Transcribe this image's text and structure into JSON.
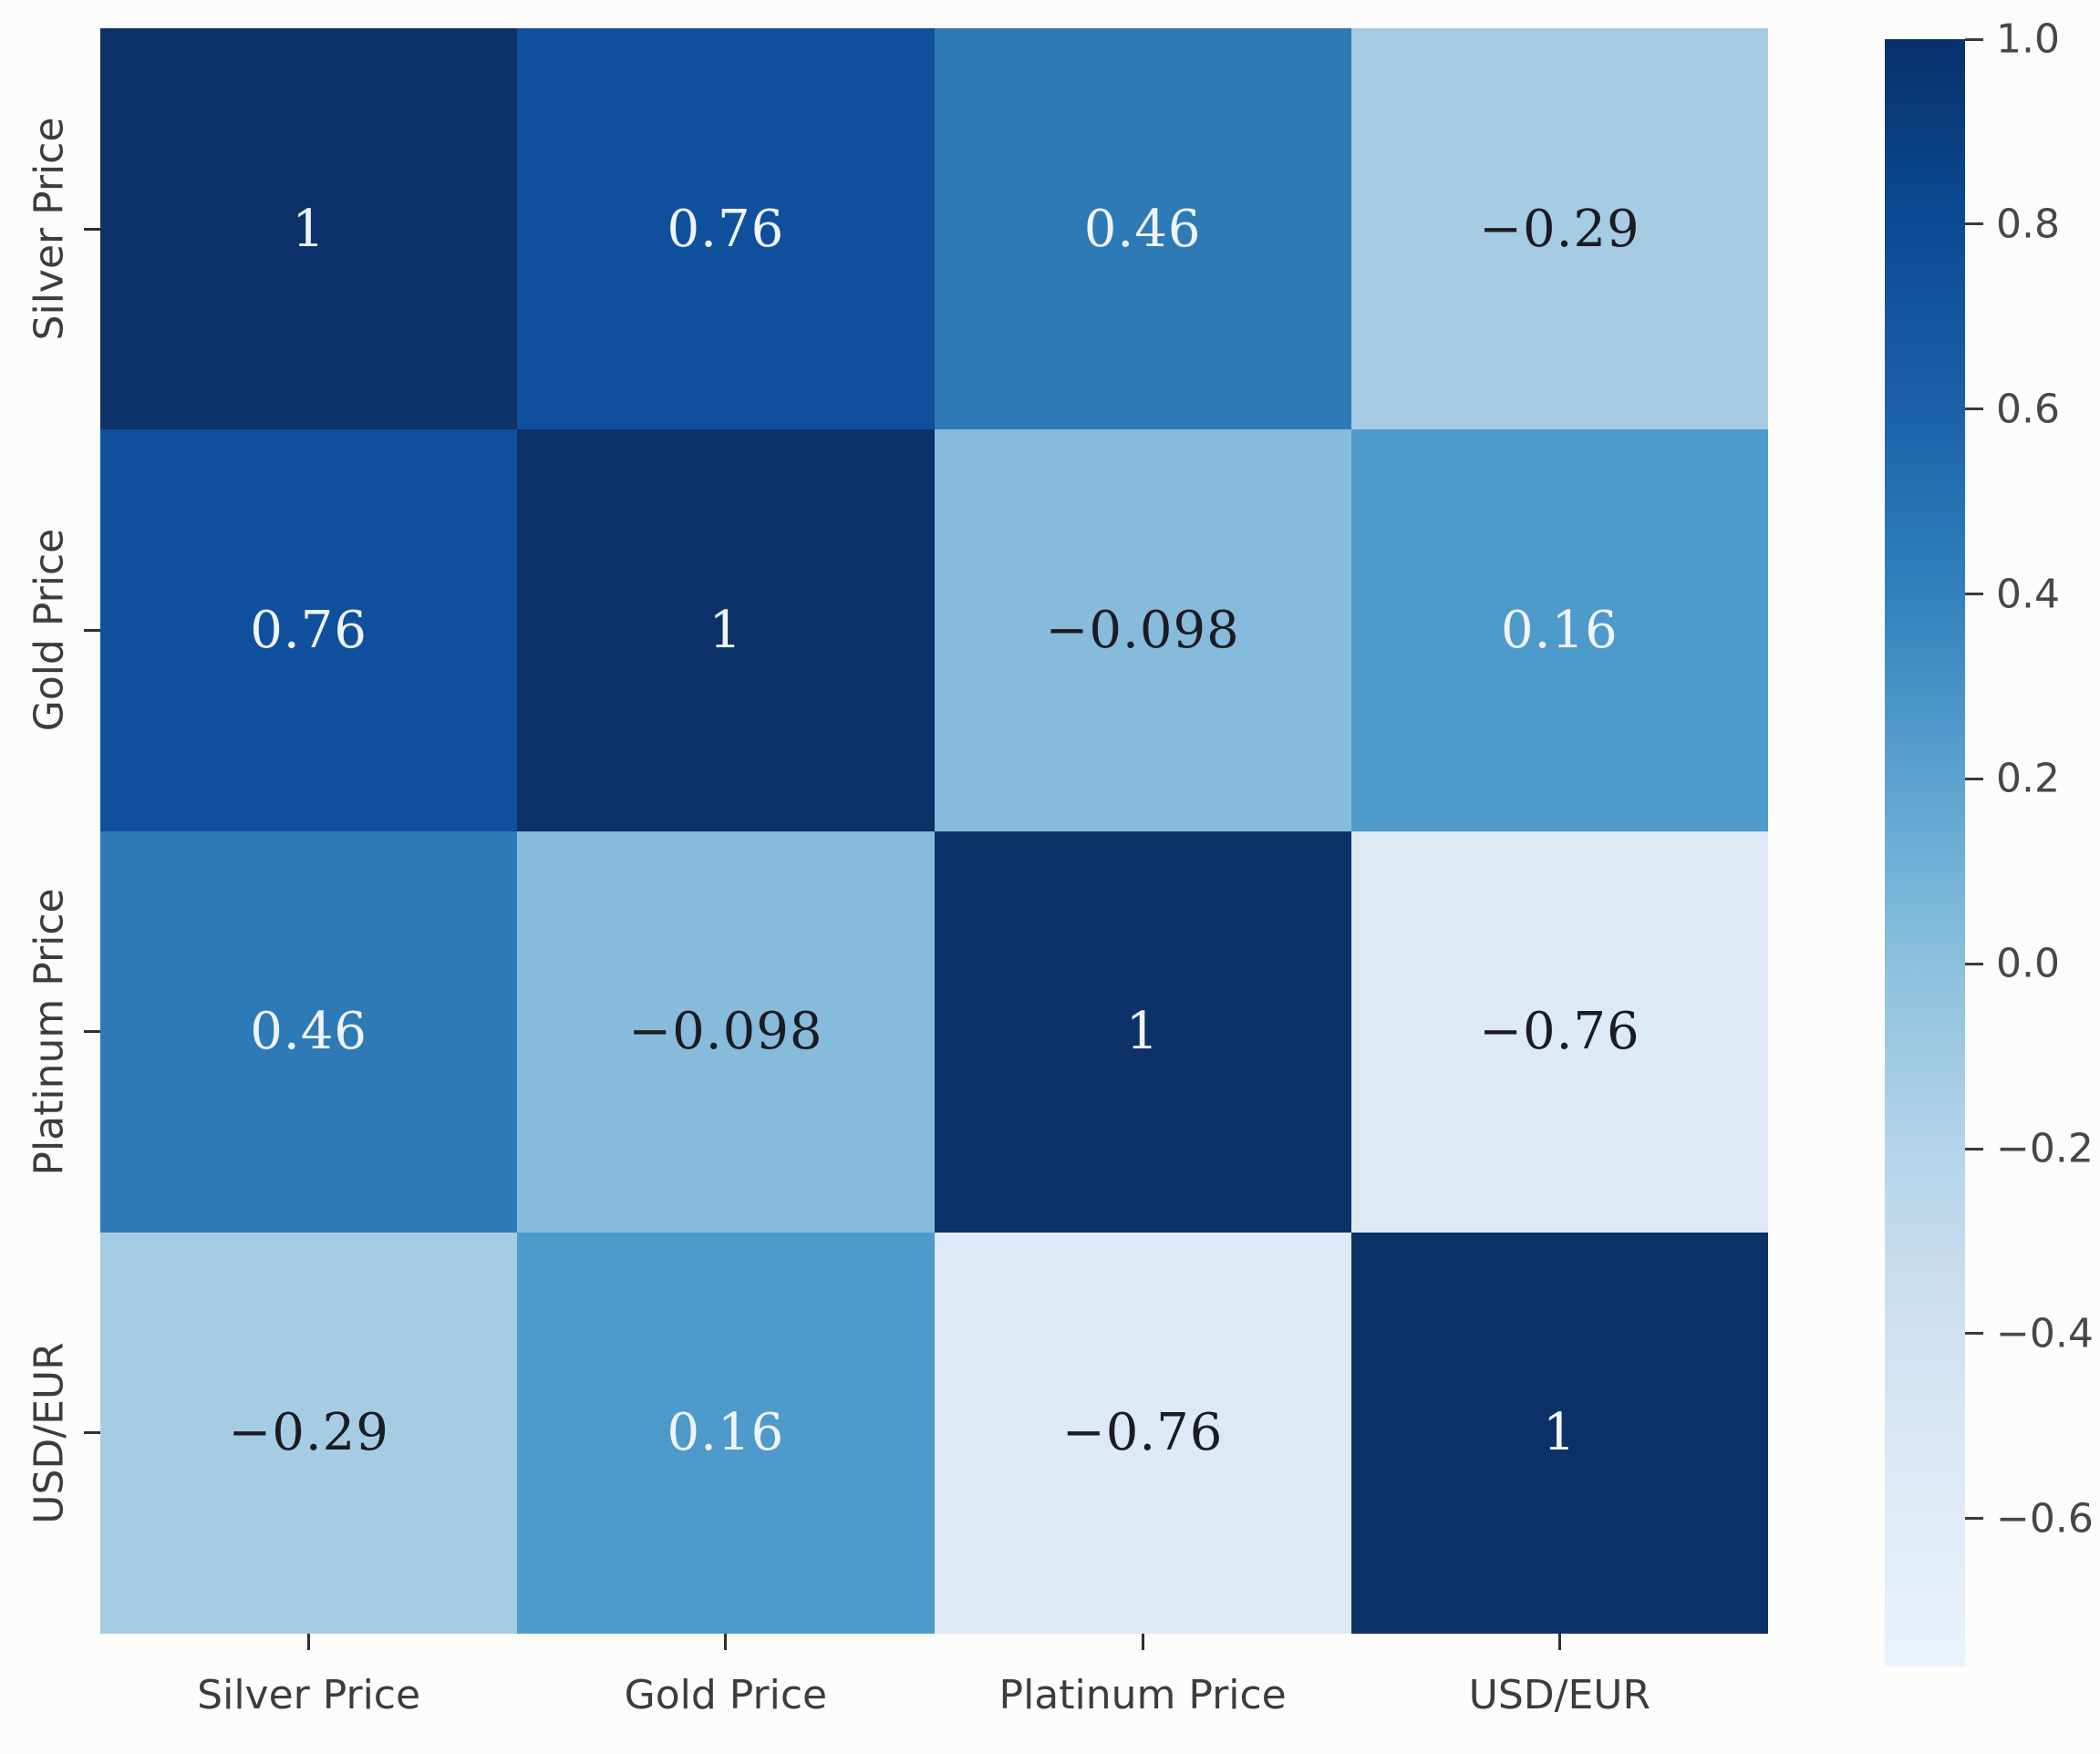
{
  "chart_data": {
    "type": "heatmap",
    "title": "",
    "categories": [
      "Silver Price",
      "Gold Price",
      "Platinum Price",
      "USD/EUR"
    ],
    "x_tick_labels": [
      "Silver Price",
      "Gold Price",
      "Platinum Price",
      "USD/EUR"
    ],
    "y_tick_labels": [
      "Silver Price",
      "Gold Price",
      "Platinum Price",
      "USD/EUR"
    ],
    "matrix": [
      [
        1,
        0.76,
        0.46,
        -0.29
      ],
      [
        0.76,
        1,
        -0.098,
        0.16
      ],
      [
        0.46,
        -0.098,
        1,
        -0.76
      ],
      [
        -0.29,
        0.16,
        -0.76,
        1
      ]
    ],
    "cell_labels": [
      [
        "1",
        "0.76",
        "0.46",
        "−0.29"
      ],
      [
        "0.76",
        "1",
        "−0.098",
        "0.16"
      ],
      [
        "0.46",
        "−0.098",
        "1",
        "−0.76"
      ],
      [
        "−0.29",
        "0.16",
        "−0.76",
        "1"
      ]
    ],
    "cell_colors": [
      [
        "#0c3269",
        "#0f509d",
        "#2e7ab6",
        "#a6cce4"
      ],
      [
        "#0f509d",
        "#0c3269",
        "#86bbdb",
        "#4e9acb"
      ],
      [
        "#2e7ab6",
        "#86bbdb",
        "#0c3269",
        "#dde9f5"
      ],
      [
        "#a6cce4",
        "#4e9acb",
        "#dde9f5",
        "#0c3269"
      ]
    ],
    "cell_text_colors": [
      [
        "#f0f4f9",
        "#f0f4f9",
        "#f0f4f9",
        "#1b1b22"
      ],
      [
        "#f0f4f9",
        "#f0f4f9",
        "#1b1b22",
        "#f0f4f9"
      ],
      [
        "#f0f4f9",
        "#1b1b22",
        "#f0f4f9",
        "#1b1b22"
      ],
      [
        "#1b1b22",
        "#f0f4f9",
        "#1b1b22",
        "#f0f4f9"
      ]
    ],
    "grid": false,
    "legend_position": "right-colorbar",
    "colorbar": {
      "colormap": "Blues",
      "vmin": -0.76,
      "vmax": 1.0,
      "tick_labels": [
        "1.0",
        "0.8",
        "0.6",
        "0.4",
        "0.2",
        "0.0",
        "−0.2",
        "−0.4",
        "−0.6"
      ],
      "tick_values": [
        1.0,
        0.8,
        0.6,
        0.4,
        0.2,
        0.0,
        -0.2,
        -0.4,
        -0.6
      ],
      "gradient_stops": [
        {
          "pos": 0,
          "color": "#08306b"
        },
        {
          "pos": 11.4,
          "color": "#0a4b94"
        },
        {
          "pos": 22.7,
          "color": "#1b62a8"
        },
        {
          "pos": 34.1,
          "color": "#3181bd"
        },
        {
          "pos": 45.5,
          "color": "#5ba3d0"
        },
        {
          "pos": 56.8,
          "color": "#8bc0dd"
        },
        {
          "pos": 68.2,
          "color": "#b5d4ea"
        },
        {
          "pos": 79.5,
          "color": "#d0e1f2"
        },
        {
          "pos": 90.9,
          "color": "#e0ebf7"
        },
        {
          "pos": 100,
          "color": "#eaf2fb"
        }
      ]
    }
  }
}
